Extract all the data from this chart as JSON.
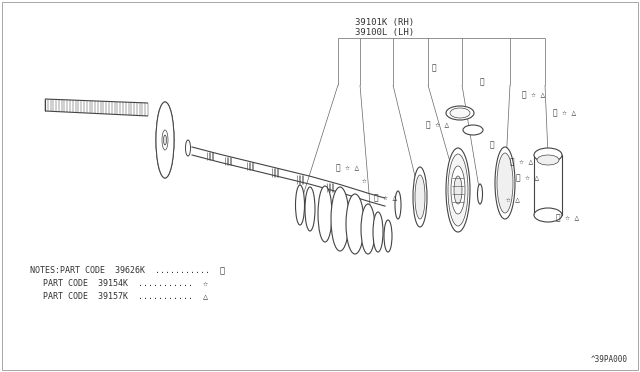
{
  "bg_color": "#ffffff",
  "line_color": "#444444",
  "text_color": "#333333",
  "part_label_1": "39101K (RH)",
  "part_label_2": "39100L (LH)",
  "note_line1": "NOTES:PART CODE  39626K  ...........  ※",
  "note_line2": "       PART CODE  39154K  ...........  ☆",
  "note_line3": "       PART CODE  39157K  ...........  △",
  "catalog_no": "^39PA000",
  "sym1": "※",
  "sym2": "☆",
  "sym3": "△"
}
